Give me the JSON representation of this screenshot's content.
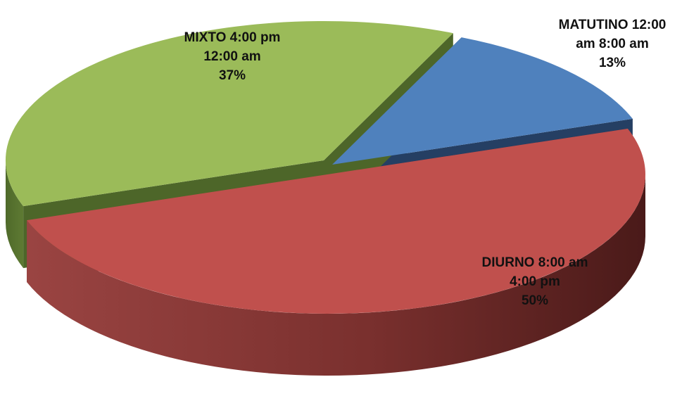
{
  "chart_data": {
    "type": "pie",
    "style": "3d-exploded",
    "categories": [
      "MATUTINO 12:00 am 8:00 am",
      "DIURNO 8:00 am 4:00 pm",
      "MIXTO 4:00 pm 12:00 am"
    ],
    "values": [
      13,
      50,
      37
    ],
    "unit": "%",
    "colors": [
      "#4f81bd",
      "#c0504d",
      "#9bbb59"
    ],
    "labels": [
      {
        "line1": "MATUTINO 12:00",
        "line2": "am 8:00 am",
        "line3": "13%"
      },
      {
        "line1": "DIURNO 8:00 am",
        "line2": "4:00 pm",
        "line3": "50%"
      },
      {
        "line1": "MIXTO 4:00 pm",
        "line2": "12:00 am",
        "line3": "37%"
      }
    ]
  }
}
